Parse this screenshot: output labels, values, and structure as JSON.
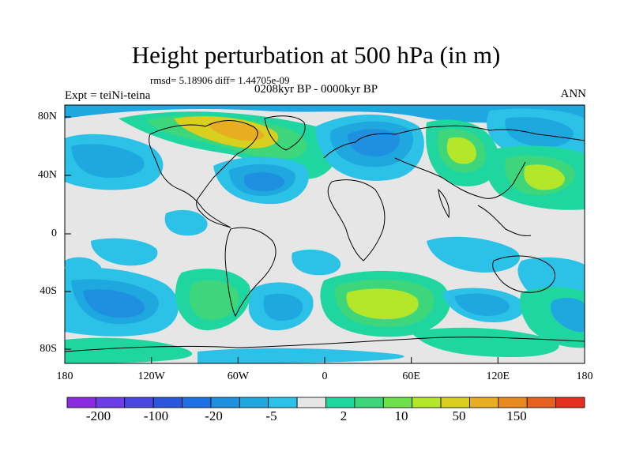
{
  "title": "Height perturbation at 500 hPa (in m)",
  "stats": "rmsd= 5.18906  diff= 1.44705e-09",
  "period": "0208kyr BP - 0000kyr BP",
  "experiment": "Expt = teiNi-teina",
  "season": "ANN",
  "latitude_labels": [
    "80N",
    "40N",
    "0",
    "40S",
    "80S"
  ],
  "longitude_labels": [
    "180",
    "120W",
    "60W",
    "0",
    "60E",
    "120E",
    "180"
  ],
  "colorbar": {
    "labels": [
      "-200",
      "-100",
      "-20",
      "-5",
      "2",
      "10",
      "50",
      "150"
    ],
    "colors": [
      "#8b2be0",
      "#6a3de6",
      "#4a47e0",
      "#2b55db",
      "#1f71e3",
      "#1f8fe0",
      "#1fa8e0",
      "#2cc1e6",
      "#e6e6e6",
      "#20d6a0",
      "#3dd67a",
      "#6ee04a",
      "#b4e62a",
      "#d8cf1f",
      "#e6ae20",
      "#e88a20",
      "#e86020",
      "#e62e1f"
    ]
  },
  "palette": {
    "bg": "#e6e6e6",
    "cyan": "#2cc1e6",
    "lblue": "#1fa8e0",
    "mblue": "#1f8fe0",
    "blue": "#1f71e3",
    "green": "#20d6a0",
    "lgreen": "#3dd67a",
    "ygreen": "#b4e62a",
    "yellow": "#d8cf1f",
    "orange": "#e6ae20"
  }
}
